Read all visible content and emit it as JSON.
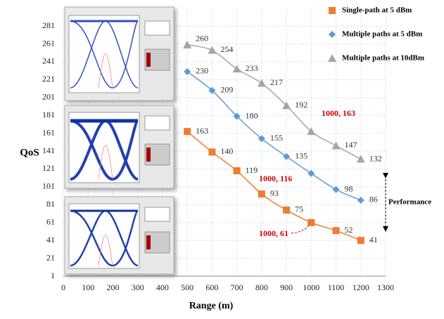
{
  "chart_data": {
    "type": "line",
    "x_label": "Range (m)",
    "y_label": "QoS",
    "x": [
      500,
      600,
      700,
      800,
      900,
      1000,
      1100,
      1200
    ],
    "series": [
      {
        "name": "Single-path at 5 dBm",
        "color": "#ed7d31",
        "marker": "square",
        "values": [
          163,
          140,
          119,
          93,
          75,
          61,
          52,
          41
        ]
      },
      {
        "name": "Multiple paths at 5 dBm",
        "color": "#5b9bd5",
        "marker": "diamond",
        "values": [
          230,
          209,
          180,
          155,
          135,
          116,
          98,
          86
        ]
      },
      {
        "name": "Multiple paths at 10dBm",
        "color": "#a5a5a5",
        "marker": "triangle",
        "values": [
          260,
          254,
          233,
          217,
          192,
          163,
          147,
          132
        ]
      }
    ],
    "annotations": [
      "1000, 163",
      "1000, 116",
      "1000, 61"
    ],
    "side_note": "Performance",
    "xlim": [
      0,
      1300
    ],
    "xticks": [
      0,
      100,
      200,
      300,
      400,
      500,
      600,
      700,
      800,
      900,
      1000,
      1100,
      1200,
      1300
    ],
    "ylim": [
      1,
      300
    ],
    "yticks": [
      1,
      21,
      41,
      61,
      81,
      101,
      121,
      141,
      161,
      181,
      201,
      221,
      241,
      261,
      281
    ],
    "grid": true,
    "legend": "upper right"
  }
}
